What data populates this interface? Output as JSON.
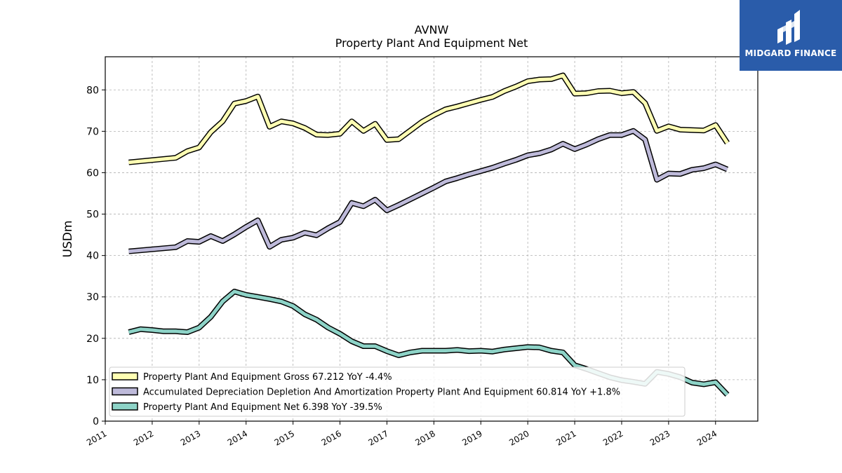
{
  "brand": {
    "name": "MIDGARD FINANCE",
    "color": "#2a5caa"
  },
  "chart_data": {
    "type": "line",
    "title": "AVNW",
    "subtitle": "Property Plant And Equipment Net",
    "ylabel": "USDm",
    "xlabel": "",
    "ylim": [
      0,
      88
    ],
    "xlim": [
      2011.0,
      2024.9
    ],
    "yticks": [
      0,
      10,
      20,
      30,
      40,
      50,
      60,
      70,
      80
    ],
    "xticks": [
      "2011",
      "2012",
      "2013",
      "2014",
      "2015",
      "2016",
      "2017",
      "2018",
      "2019",
      "2020",
      "2021",
      "2022",
      "2023",
      "2024"
    ],
    "grid": true,
    "legend_position": "lower-left",
    "series": [
      {
        "name": "Property Plant And Equipment Gross",
        "legend": "Property Plant And Equipment Gross  67.212 YoY -4.4%",
        "color": "#ffffb3",
        "x": [
          2011.5,
          2012.5,
          2012.75,
          2013.0,
          2013.25,
          2013.5,
          2013.75,
          2014.0,
          2014.25,
          2014.5,
          2014.75,
          2015.0,
          2015.25,
          2015.5,
          2015.75,
          2016.0,
          2016.25,
          2016.5,
          2016.75,
          2017.0,
          2017.25,
          2017.5,
          2017.75,
          2018.0,
          2018.25,
          2018.5,
          2018.75,
          2019.0,
          2019.25,
          2019.5,
          2019.75,
          2020.0,
          2020.25,
          2020.5,
          2020.75,
          2021.0,
          2021.25,
          2021.5,
          2021.75,
          2022.0,
          2022.25,
          2022.5,
          2022.75,
          2023.0,
          2023.25,
          2023.5,
          2023.75,
          2024.0,
          2024.25
        ],
        "y": [
          62.5,
          63.6,
          65.2,
          66.1,
          69.8,
          72.4,
          76.7,
          77.3,
          78.4,
          71.1,
          72.4,
          71.9,
          70.8,
          69.2,
          69.1,
          69.4,
          72.4,
          70.1,
          71.8,
          67.9,
          68.1,
          70.2,
          72.3,
          73.9,
          75.3,
          76.0,
          76.8,
          77.6,
          78.3,
          79.7,
          80.8,
          82.1,
          82.5,
          82.6,
          83.5,
          79.1,
          79.2,
          79.7,
          79.8,
          79.2,
          79.5,
          76.8,
          70.1,
          71.2,
          70.4,
          70.3,
          70.2,
          71.5,
          67.2
        ]
      },
      {
        "name": "Accumulated Depreciation Depletion And Amortization Property Plant And Equipment",
        "legend": "Accumulated Depreciation Depletion And Amortization Property Plant And Equipment  60.814 YoY +1.8%",
        "color": "#bebada",
        "x": [
          2011.5,
          2012.5,
          2012.75,
          2013.0,
          2013.25,
          2013.5,
          2013.75,
          2014.0,
          2014.25,
          2014.5,
          2014.75,
          2015.0,
          2015.25,
          2015.5,
          2015.75,
          2016.0,
          2016.25,
          2016.5,
          2016.75,
          2017.0,
          2017.25,
          2017.5,
          2017.75,
          2018.0,
          2018.25,
          2018.5,
          2018.75,
          2019.0,
          2019.25,
          2019.5,
          2019.75,
          2020.0,
          2020.25,
          2020.5,
          2020.75,
          2021.0,
          2021.25,
          2021.5,
          2021.75,
          2022.0,
          2022.25,
          2022.5,
          2022.75,
          2023.0,
          2023.25,
          2023.5,
          2023.75,
          2024.0,
          2024.25
        ],
        "y": [
          41.0,
          42.0,
          43.5,
          43.3,
          44.7,
          43.5,
          45.1,
          46.9,
          48.5,
          42.1,
          43.8,
          44.3,
          45.5,
          44.9,
          46.6,
          48.1,
          52.7,
          51.9,
          53.5,
          50.9,
          52.2,
          53.6,
          55.0,
          56.4,
          57.9,
          58.7,
          59.6,
          60.4,
          61.2,
          62.2,
          63.1,
          64.2,
          64.7,
          65.6,
          67.0,
          65.7,
          66.8,
          68.1,
          69.1,
          69.1,
          70.1,
          68.0,
          58.3,
          59.8,
          59.7,
          60.7,
          61.1,
          62.0,
          60.8
        ]
      },
      {
        "name": "Property Plant And Equipment Net",
        "legend": "Property Plant And Equipment Net  6.398 YoY -39.5%",
        "color": "#8dd3c7",
        "x": [
          2011.5,
          2011.75,
          2012.0,
          2012.25,
          2012.5,
          2012.75,
          2013.0,
          2013.25,
          2013.5,
          2013.75,
          2014.0,
          2014.25,
          2014.5,
          2014.75,
          2015.0,
          2015.25,
          2015.5,
          2015.75,
          2016.0,
          2016.25,
          2016.5,
          2016.75,
          2017.0,
          2017.25,
          2017.5,
          2017.75,
          2018.0,
          2018.25,
          2018.5,
          2018.75,
          2019.0,
          2019.25,
          2019.5,
          2019.75,
          2020.0,
          2020.25,
          2020.5,
          2020.75,
          2021.0,
          2021.25,
          2021.5,
          2021.75,
          2022.0,
          2022.25,
          2022.5,
          2022.75,
          2023.0,
          2023.25,
          2023.5,
          2023.75,
          2024.0,
          2024.25
        ],
        "y": [
          21.5,
          22.2,
          22.0,
          21.7,
          21.7,
          21.5,
          22.6,
          25.2,
          28.9,
          31.3,
          30.5,
          30.0,
          29.5,
          28.9,
          27.8,
          25.8,
          24.5,
          22.6,
          21.1,
          19.3,
          18.1,
          18.1,
          16.9,
          15.9,
          16.6,
          17.0,
          17.0,
          17.0,
          17.2,
          16.9,
          17.0,
          16.8,
          17.3,
          17.6,
          17.9,
          17.8,
          17.0,
          16.6,
          13.5,
          12.6,
          11.6,
          10.6,
          9.9,
          9.5,
          9.0,
          11.9,
          11.4,
          10.6,
          9.3,
          8.9,
          9.4,
          6.4
        ]
      }
    ]
  }
}
